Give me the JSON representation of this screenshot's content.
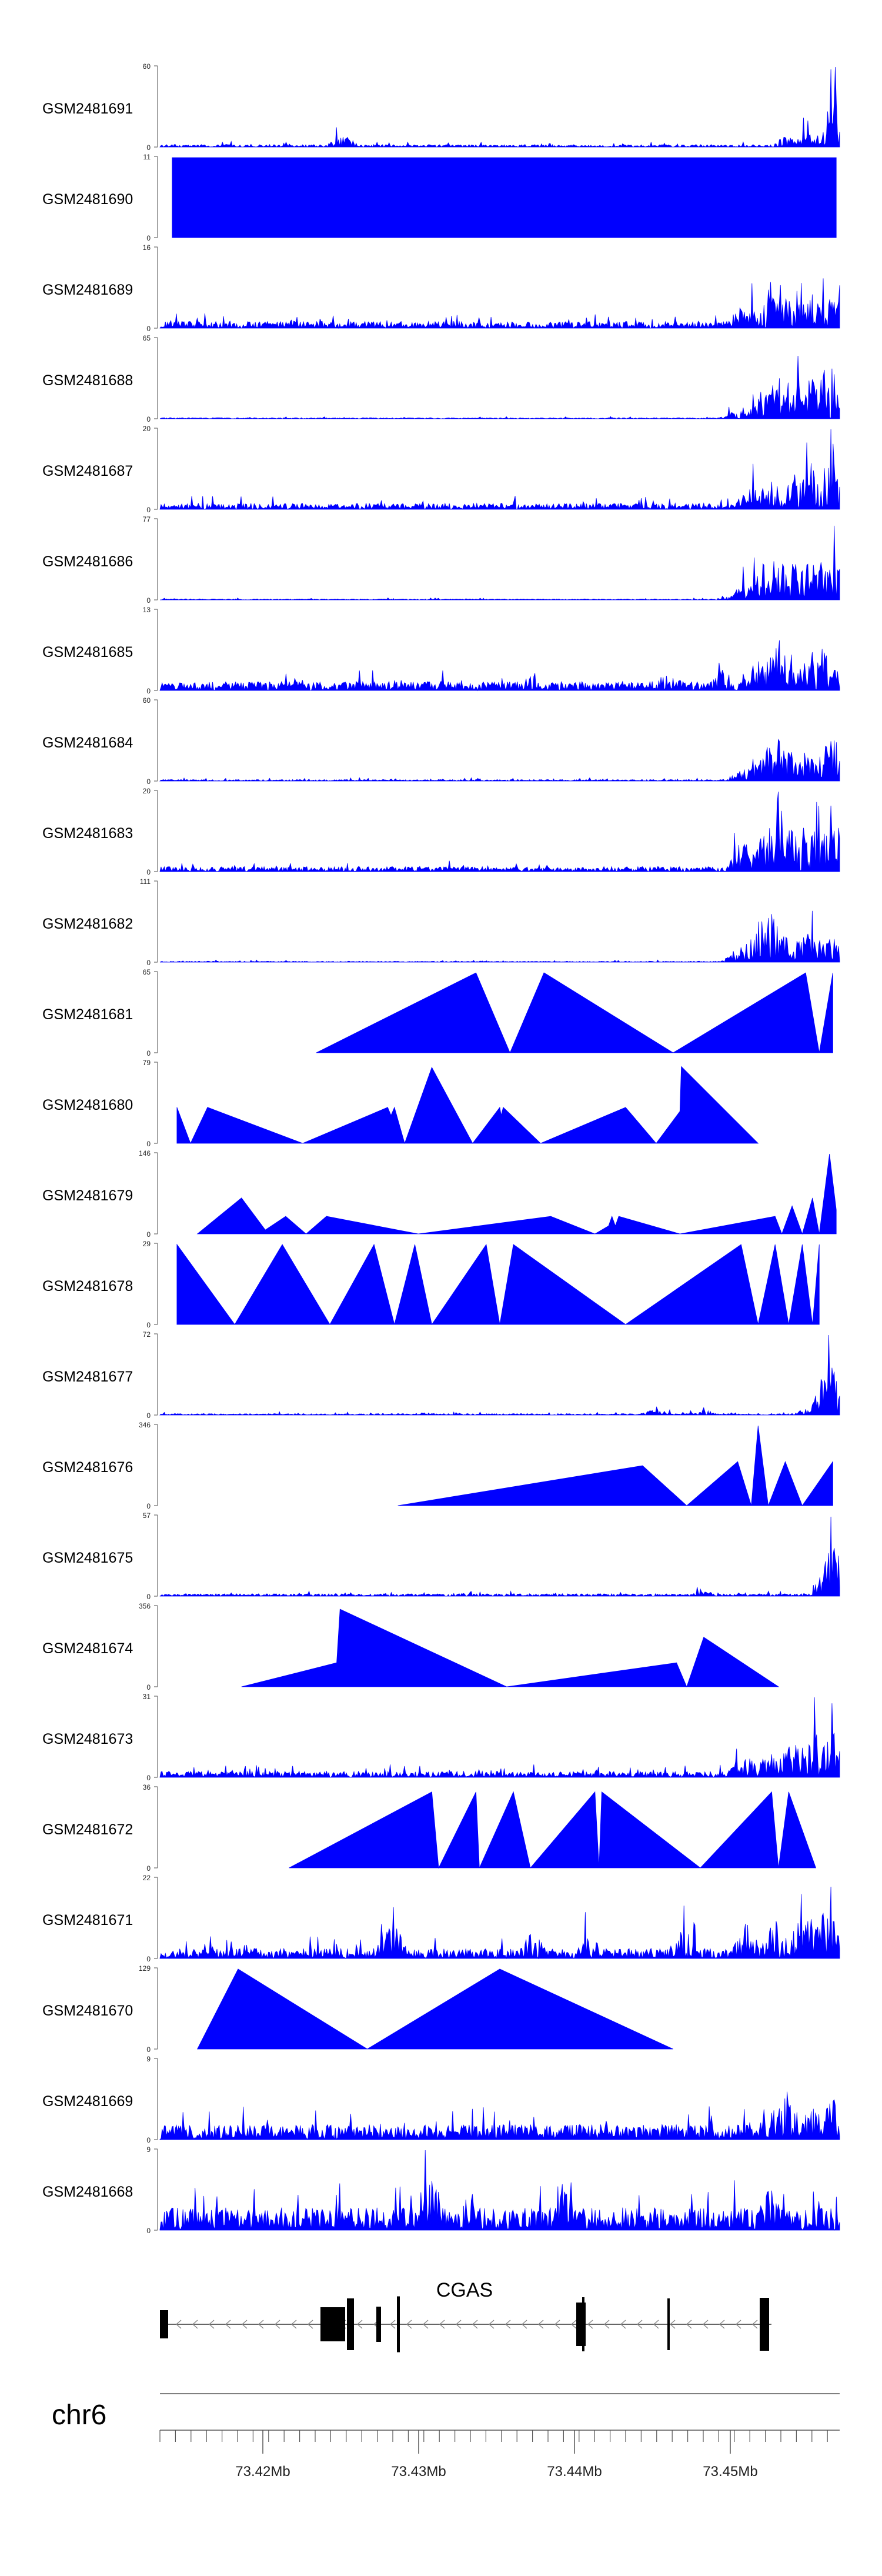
{
  "chart_data": {
    "type": "area",
    "title": "",
    "xlabel": "",
    "chromosome": "chr6",
    "gene": {
      "name": "CGAS",
      "strand": "-"
    },
    "x_ticks": [
      "73.42Mb",
      "73.43Mb",
      "73.44Mb",
      "73.45Mb"
    ],
    "colors": {
      "track": "#0000ff",
      "gene": "#000000",
      "axis": "#555555"
    },
    "tracks": [
      {
        "name": "GSM2481691",
        "ymax": "60",
        "profile": "noise",
        "level": 0.05,
        "p": [
          [
            0.27,
            0.22
          ],
          [
            0.92,
            0.2
          ],
          [
            0.95,
            0.28
          ],
          [
            0.975,
            0.35
          ],
          [
            0.994,
            1.0
          ]
        ]
      },
      {
        "name": "GSM2481690",
        "ymax": "11",
        "profile": "sparse",
        "level": 0.0,
        "p": [
          [
            0.018,
            1.0
          ],
          [
            0.043,
            1.0
          ],
          [
            0.06,
            1.0
          ],
          [
            0.2,
            1.0
          ],
          [
            0.26,
            1.0
          ],
          [
            0.35,
            1.0
          ],
          [
            0.362,
            1.0
          ],
          [
            0.41,
            1.0
          ],
          [
            0.455,
            1.0
          ],
          [
            0.49,
            1.0
          ],
          [
            0.525,
            1.0
          ],
          [
            0.63,
            1.0
          ],
          [
            0.645,
            1.0
          ],
          [
            0.812,
            1.0
          ],
          [
            0.825,
            1.0
          ],
          [
            0.855,
            1.0
          ],
          [
            0.925,
            1.0
          ],
          [
            0.995,
            1.0
          ]
        ]
      },
      {
        "name": "GSM2481689",
        "ymax": "16",
        "profile": "noise",
        "level": 0.14,
        "p": [
          [
            0.86,
            0.55
          ],
          [
            0.905,
            1.0
          ],
          [
            0.935,
            0.75
          ],
          [
            0.96,
            0.8
          ],
          [
            0.985,
            0.65
          ]
        ]
      },
      {
        "name": "GSM2481688",
        "ymax": "65",
        "profile": "noise",
        "level": 0.02,
        "p": [
          [
            0.85,
            0.15
          ],
          [
            0.89,
            0.6
          ],
          [
            0.91,
            0.85
          ],
          [
            0.93,
            0.8
          ],
          [
            0.95,
            0.95
          ],
          [
            0.975,
            0.9
          ],
          [
            0.99,
            1.0
          ]
        ]
      },
      {
        "name": "GSM2481687",
        "ymax": "20",
        "profile": "noise",
        "level": 0.12,
        "p": [
          [
            0.87,
            0.45
          ],
          [
            0.9,
            0.6
          ],
          [
            0.93,
            0.75
          ],
          [
            0.955,
            0.95
          ],
          [
            0.975,
            0.85
          ],
          [
            0.99,
            1.0
          ]
        ]
      },
      {
        "name": "GSM2481686",
        "ymax": "77",
        "profile": "noise",
        "level": 0.02,
        "p": [
          [
            0.86,
            0.3
          ],
          [
            0.89,
            0.8
          ],
          [
            0.91,
            1.0
          ],
          [
            0.935,
            0.75
          ],
          [
            0.96,
            0.9
          ],
          [
            0.98,
            0.85
          ],
          [
            0.995,
            0.75
          ]
        ]
      },
      {
        "name": "GSM2481685",
        "ymax": "13",
        "profile": "noise",
        "level": 0.18,
        "p": [
          [
            0.55,
            0.35
          ],
          [
            0.75,
            0.4
          ],
          [
            0.83,
            0.45
          ],
          [
            0.88,
            0.65
          ],
          [
            0.91,
            1.0
          ],
          [
            0.95,
            0.55
          ],
          [
            0.97,
            0.9
          ],
          [
            0.99,
            0.45
          ]
        ]
      },
      {
        "name": "GSM2481684",
        "ymax": "60",
        "profile": "noise",
        "level": 0.03,
        "p": [
          [
            0.86,
            0.25
          ],
          [
            0.89,
            0.6
          ],
          [
            0.905,
            1.0
          ],
          [
            0.93,
            0.7
          ],
          [
            0.955,
            0.7
          ],
          [
            0.975,
            0.8
          ],
          [
            0.995,
            0.9
          ]
        ]
      },
      {
        "name": "GSM2481683",
        "ymax": "20",
        "profile": "noise",
        "level": 0.1,
        "p": [
          [
            0.86,
            0.55
          ],
          [
            0.89,
            0.75
          ],
          [
            0.905,
            1.0
          ],
          [
            0.93,
            0.85
          ],
          [
            0.955,
            0.95
          ],
          [
            0.98,
            0.85
          ],
          [
            0.995,
            0.9
          ]
        ]
      },
      {
        "name": "GSM2481682",
        "ymax": "111",
        "profile": "noise",
        "level": 0.02,
        "p": [
          [
            0.86,
            0.4
          ],
          [
            0.885,
            0.85
          ],
          [
            0.9,
            1.0
          ],
          [
            0.925,
            0.6
          ],
          [
            0.95,
            0.55
          ],
          [
            0.97,
            0.6
          ],
          [
            0.99,
            0.5
          ]
        ]
      },
      {
        "name": "GSM2481681",
        "ymax": "65",
        "profile": "sparse",
        "level": 0.0,
        "p": [
          [
            0.23,
            0.0
          ],
          [
            0.465,
            1.0
          ],
          [
            0.515,
            0.0
          ],
          [
            0.565,
            1.0
          ],
          [
            0.567,
            0.99
          ],
          [
            0.755,
            0.0
          ],
          [
            0.95,
            1.0
          ],
          [
            0.97,
            0.0
          ],
          [
            0.99,
            1.0
          ]
        ]
      },
      {
        "name": "GSM2481680",
        "ymax": "79",
        "profile": "sparse",
        "level": 0.0,
        "p": [
          [
            0.025,
            0.45
          ],
          [
            0.045,
            0.0
          ],
          [
            0.07,
            0.45
          ],
          [
            0.21,
            0.0
          ],
          [
            0.335,
            0.45
          ],
          [
            0.34,
            0.35
          ],
          [
            0.345,
            0.45
          ],
          [
            0.36,
            0.0
          ],
          [
            0.4,
            0.95
          ],
          [
            0.46,
            0.0
          ],
          [
            0.5,
            0.45
          ],
          [
            0.502,
            0.35
          ],
          [
            0.505,
            0.45
          ],
          [
            0.56,
            0.0
          ],
          [
            0.685,
            0.45
          ],
          [
            0.73,
            0.0
          ],
          [
            0.765,
            0.4
          ],
          [
            0.767,
            0.96
          ],
          [
            0.88,
            0.0
          ]
        ]
      },
      {
        "name": "GSM2481679",
        "ymax": "146",
        "profile": "sparse",
        "level": 0.0,
        "p": [
          [
            0.055,
            0.0
          ],
          [
            0.12,
            0.45
          ],
          [
            0.155,
            0.05
          ],
          [
            0.185,
            0.22
          ],
          [
            0.215,
            0.0
          ],
          [
            0.245,
            0.22
          ],
          [
            0.38,
            0.0
          ],
          [
            0.575,
            0.22
          ],
          [
            0.64,
            0.0
          ],
          [
            0.66,
            0.1
          ],
          [
            0.665,
            0.22
          ],
          [
            0.67,
            0.1
          ],
          [
            0.675,
            0.22
          ],
          [
            0.765,
            0.0
          ],
          [
            0.905,
            0.22
          ],
          [
            0.915,
            0.0
          ],
          [
            0.93,
            0.35
          ],
          [
            0.945,
            0.0
          ],
          [
            0.96,
            0.45
          ],
          [
            0.97,
            0.0
          ],
          [
            0.985,
            1.0
          ],
          [
            0.995,
            0.3
          ]
        ]
      },
      {
        "name": "GSM2481678",
        "ymax": "29",
        "profile": "sparse",
        "level": 0.0,
        "p": [
          [
            0.025,
            1.0
          ],
          [
            0.11,
            0.0
          ],
          [
            0.18,
            1.0
          ],
          [
            0.25,
            0.0
          ],
          [
            0.315,
            1.0
          ],
          [
            0.345,
            0.0
          ],
          [
            0.375,
            1.0
          ],
          [
            0.4,
            0.0
          ],
          [
            0.48,
            1.0
          ],
          [
            0.5,
            0.0
          ],
          [
            0.52,
            1.0
          ],
          [
            0.685,
            0.0
          ],
          [
            0.855,
            1.0
          ],
          [
            0.88,
            0.0
          ],
          [
            0.905,
            1.0
          ],
          [
            0.925,
            0.0
          ],
          [
            0.945,
            1.0
          ],
          [
            0.96,
            0.0
          ],
          [
            0.97,
            1.0
          ]
        ]
      },
      {
        "name": "GSM2481677",
        "ymax": "72",
        "profile": "noise",
        "level": 0.03,
        "p": [
          [
            0.39,
            0.05
          ],
          [
            0.73,
            0.12
          ],
          [
            0.8,
            0.1
          ],
          [
            0.96,
            0.2
          ],
          [
            0.985,
            1.0
          ]
        ]
      },
      {
        "name": "GSM2481676",
        "ymax": "346",
        "profile": "sparse",
        "level": 0.0,
        "p": [
          [
            0.35,
            0.0
          ],
          [
            0.71,
            0.5
          ],
          [
            0.775,
            0.0
          ],
          [
            0.85,
            0.55
          ],
          [
            0.87,
            0.0
          ],
          [
            0.88,
            1.0
          ],
          [
            0.895,
            0.0
          ],
          [
            0.92,
            0.55
          ],
          [
            0.945,
            0.0
          ],
          [
            0.99,
            0.55
          ]
        ]
      },
      {
        "name": "GSM2481675",
        "ymax": "57",
        "profile": "noise",
        "level": 0.05,
        "p": [
          [
            0.8,
            0.1
          ],
          [
            0.98,
            0.2
          ],
          [
            0.99,
            1.0
          ]
        ]
      },
      {
        "name": "GSM2481674",
        "ymax": "356",
        "profile": "sparse",
        "level": 0.0,
        "p": [
          [
            0.12,
            0.0
          ],
          [
            0.26,
            0.3
          ],
          [
            0.265,
            0.97
          ],
          [
            0.51,
            0.0
          ],
          [
            0.76,
            0.3
          ],
          [
            0.775,
            0.0
          ],
          [
            0.8,
            0.62
          ],
          [
            0.91,
            0.0
          ]
        ]
      },
      {
        "name": "GSM2481673",
        "ymax": "31",
        "profile": "noise",
        "level": 0.12,
        "p": [
          [
            0.12,
            0.25
          ],
          [
            0.86,
            0.45
          ],
          [
            0.9,
            0.55
          ],
          [
            0.93,
            0.7
          ],
          [
            0.965,
            0.85
          ],
          [
            0.985,
            1.0
          ]
        ]
      },
      {
        "name": "GSM2481672",
        "ymax": "36",
        "profile": "sparse",
        "level": 0.0,
        "p": [
          [
            0.19,
            0.0
          ],
          [
            0.4,
            0.95
          ],
          [
            0.41,
            0.0
          ],
          [
            0.465,
            0.95
          ],
          [
            0.47,
            0.0
          ],
          [
            0.52,
            0.95
          ],
          [
            0.545,
            0.0
          ],
          [
            0.64,
            0.95
          ],
          [
            0.646,
            0.0
          ],
          [
            0.65,
            0.95
          ],
          [
            0.795,
            0.0
          ],
          [
            0.9,
            0.95
          ],
          [
            0.91,
            0.0
          ],
          [
            0.925,
            0.95
          ],
          [
            0.965,
            0.0
          ]
        ]
      },
      {
        "name": "GSM2481671",
        "ymax": "22",
        "profile": "noise",
        "level": 0.2,
        "p": [
          [
            0.34,
            0.7
          ],
          [
            0.55,
            0.55
          ],
          [
            0.63,
            0.45
          ],
          [
            0.77,
            0.55
          ],
          [
            0.86,
            0.7
          ],
          [
            0.905,
            0.75
          ],
          [
            0.955,
            0.85
          ],
          [
            0.98,
            1.0
          ]
        ]
      },
      {
        "name": "GSM2481670",
        "ymax": "129",
        "profile": "sparse",
        "level": 0.0,
        "p": [
          [
            0.055,
            0.0
          ],
          [
            0.115,
            1.0
          ],
          [
            0.305,
            0.0
          ],
          [
            0.5,
            1.0
          ],
          [
            0.755,
            0.0
          ]
        ]
      },
      {
        "name": "GSM2481669",
        "ymax": "9",
        "profile": "noise",
        "level": 0.3,
        "p": [
          [
            0.9,
            0.8
          ],
          [
            0.92,
            1.0
          ],
          [
            0.96,
            0.7
          ],
          [
            0.99,
            0.8
          ]
        ]
      },
      {
        "name": "GSM2481668",
        "ymax": "9",
        "profile": "noise",
        "level": 0.45,
        "p": [
          [
            0.4,
            1.0
          ],
          [
            0.45,
            0.7
          ],
          [
            0.6,
            0.8
          ],
          [
            0.9,
            0.9
          ]
        ]
      }
    ]
  }
}
